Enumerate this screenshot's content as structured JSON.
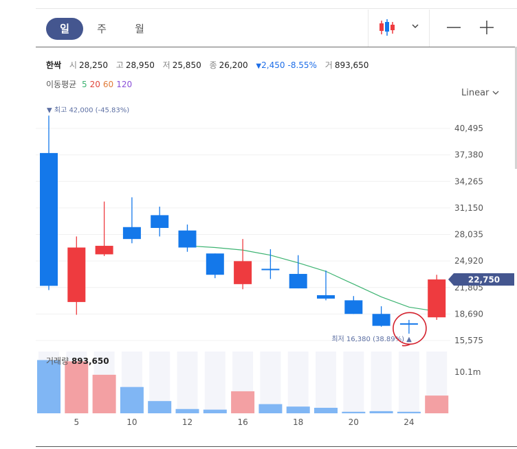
{
  "toolbar": {
    "tabs": [
      "일",
      "주",
      "월"
    ],
    "active_tab": "일",
    "chart_type_icon": "candlestick-icon",
    "zoom_out_icon": "minus-icon",
    "zoom_in_icon": "plus-icon"
  },
  "quote": {
    "name": "한싹",
    "open_label": "시",
    "open": "28,250",
    "high_label": "고",
    "high": "28,950",
    "low_label": "저",
    "low": "25,850",
    "close_label": "종",
    "close": "26,200",
    "change": "2,450",
    "change_pct": "-8.55%",
    "volume_label": "거",
    "volume": "893,650"
  },
  "ma_legend": {
    "label": "이동평균",
    "periods": [
      {
        "text": "5",
        "color": "#3cb371"
      },
      {
        "text": "20",
        "color": "#e0453a"
      },
      {
        "text": "60",
        "color": "#e07b39"
      },
      {
        "text": "120",
        "color": "#8a4fd8"
      }
    ]
  },
  "scale_selector": "Linear",
  "colors": {
    "up": "#ee3b3f",
    "down": "#1478ea",
    "ma5": "#3cb371",
    "price_tag": "#44568f"
  },
  "chart_data": {
    "type": "candlestick",
    "y_ticks": [
      "40,495",
      "37,380",
      "34,265",
      "31,150",
      "28,035",
      "24,920",
      "21,805",
      "18,690",
      "15,575"
    ],
    "x_ticks": [
      "5",
      "10",
      "12",
      "16",
      "18",
      "20",
      "24"
    ],
    "ylim": [
      15575,
      40495
    ],
    "candles": [
      {
        "open": 37600,
        "high": 42000,
        "low": 21500,
        "close": 22000
      },
      {
        "open": 20100,
        "high": 27800,
        "low": 18600,
        "close": 26500
      },
      {
        "open": 25700,
        "high": 31900,
        "low": 25500,
        "close": 26700
      },
      {
        "open": 28900,
        "high": 32400,
        "low": 27000,
        "close": 27500
      },
      {
        "open": 30300,
        "high": 31300,
        "low": 27800,
        "close": 28800
      },
      {
        "open": 28500,
        "high": 29200,
        "low": 26000,
        "close": 26500
      },
      {
        "open": 25800,
        "high": 25800,
        "low": 22900,
        "close": 23300
      },
      {
        "open": 22200,
        "high": 27500,
        "low": 21600,
        "close": 24900
      },
      {
        "open": 24000,
        "high": 26300,
        "low": 22800,
        "close": 24000
      },
      {
        "open": 23400,
        "high": 25600,
        "low": 21700,
        "close": 21700
      },
      {
        "open": 20900,
        "high": 23800,
        "low": 20300,
        "close": 20500
      },
      {
        "open": 20300,
        "high": 20800,
        "low": 18700,
        "close": 18700
      },
      {
        "open": 18700,
        "high": 19600,
        "low": 17200,
        "close": 17300
      },
      {
        "open": 17600,
        "high": 18000,
        "low": 16380,
        "close": 17500
      },
      {
        "open": 18300,
        "high": 23300,
        "low": 18000,
        "close": 22750
      }
    ],
    "ma5": [
      null,
      null,
      null,
      null,
      null,
      26700,
      26500,
      26200,
      25600,
      24700,
      23700,
      22200,
      20700,
      19500,
      19000
    ],
    "max_label": "최고 42,000 (-45.83%)",
    "min_label": "최저 16,380 (38.89%)",
    "current_price": "22,750",
    "volume": {
      "label": "거래량",
      "value": "893,650",
      "axis_tick": "10.1m",
      "max": 10100000,
      "bars": [
        8700000,
        8500000,
        6300000,
        4300000,
        2000000,
        700000,
        600000,
        3600000,
        1500000,
        1100000,
        900000,
        250000,
        350000,
        250000,
        2900000
      ]
    }
  }
}
